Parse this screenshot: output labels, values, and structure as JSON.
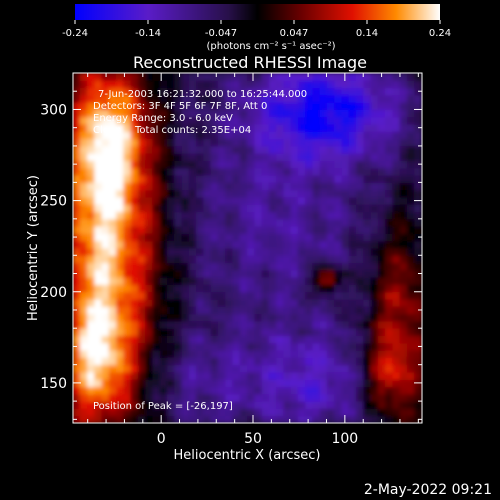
{
  "chart_data": {
    "type": "heatmap",
    "title": "Reconstructed RHESSI Image",
    "xlabel": "Heliocentric X (arcsec)",
    "ylabel": "Heliocentric Y (arcsec)",
    "xlim": [
      -48,
      142
    ],
    "ylim": [
      128,
      320
    ],
    "x_ticks": [
      0,
      50,
      100
    ],
    "y_ticks": [
      150,
      200,
      250,
      300
    ],
    "colorbar": {
      "range": [
        -0.24,
        0.24
      ],
      "ticks": [
        "-0.24",
        "-0.14",
        "-0.047",
        "0.047",
        "0.14",
        "0.24"
      ],
      "unit_label": "(photons cm⁻² s⁻¹ asec⁻²)"
    },
    "info": {
      "time": "7-Jun-2003 16:21:32.000 to 16:25:44.000",
      "detectors": "Detectors: 3F 4F 5F 6F 7F 8F, Att 0",
      "energy": "Energy Range: 3.0 - 6.0 keV",
      "method": "Clean",
      "counts": "Total counts: 2.35E+04"
    },
    "peak_label": "Position of Peak = [-26,197]",
    "peak_position": [
      -26,
      197
    ],
    "blobs": [
      {
        "x": -30,
        "y": 215,
        "sx": 20,
        "sy": 55,
        "amp": 0.24
      },
      {
        "x": -28,
        "y": 285,
        "sx": 15,
        "sy": 28,
        "amp": 0.2
      },
      {
        "x": -36,
        "y": 160,
        "sx": 13,
        "sy": 22,
        "amp": 0.14
      },
      {
        "x": 90,
        "y": 207,
        "sx": 5,
        "sy": 5,
        "amp": 0.18
      },
      {
        "x": 130,
        "y": 185,
        "sx": 12,
        "sy": 38,
        "amp": 0.13
      },
      {
        "x": 123,
        "y": 155,
        "sx": 10,
        "sy": 13,
        "amp": 0.09
      },
      {
        "x": 20,
        "y": 150,
        "sx": 20,
        "sy": 20,
        "amp": -0.06
      },
      {
        "x": 65,
        "y": 240,
        "sx": 40,
        "sy": 45,
        "amp": -0.07
      },
      {
        "x": 90,
        "y": 300,
        "sx": 28,
        "sy": 18,
        "amp": -0.17
      },
      {
        "x": 80,
        "y": 150,
        "sx": 25,
        "sy": 20,
        "amp": -0.1
      }
    ]
  },
  "footer": {
    "date": "2-May-2022 09:21"
  }
}
